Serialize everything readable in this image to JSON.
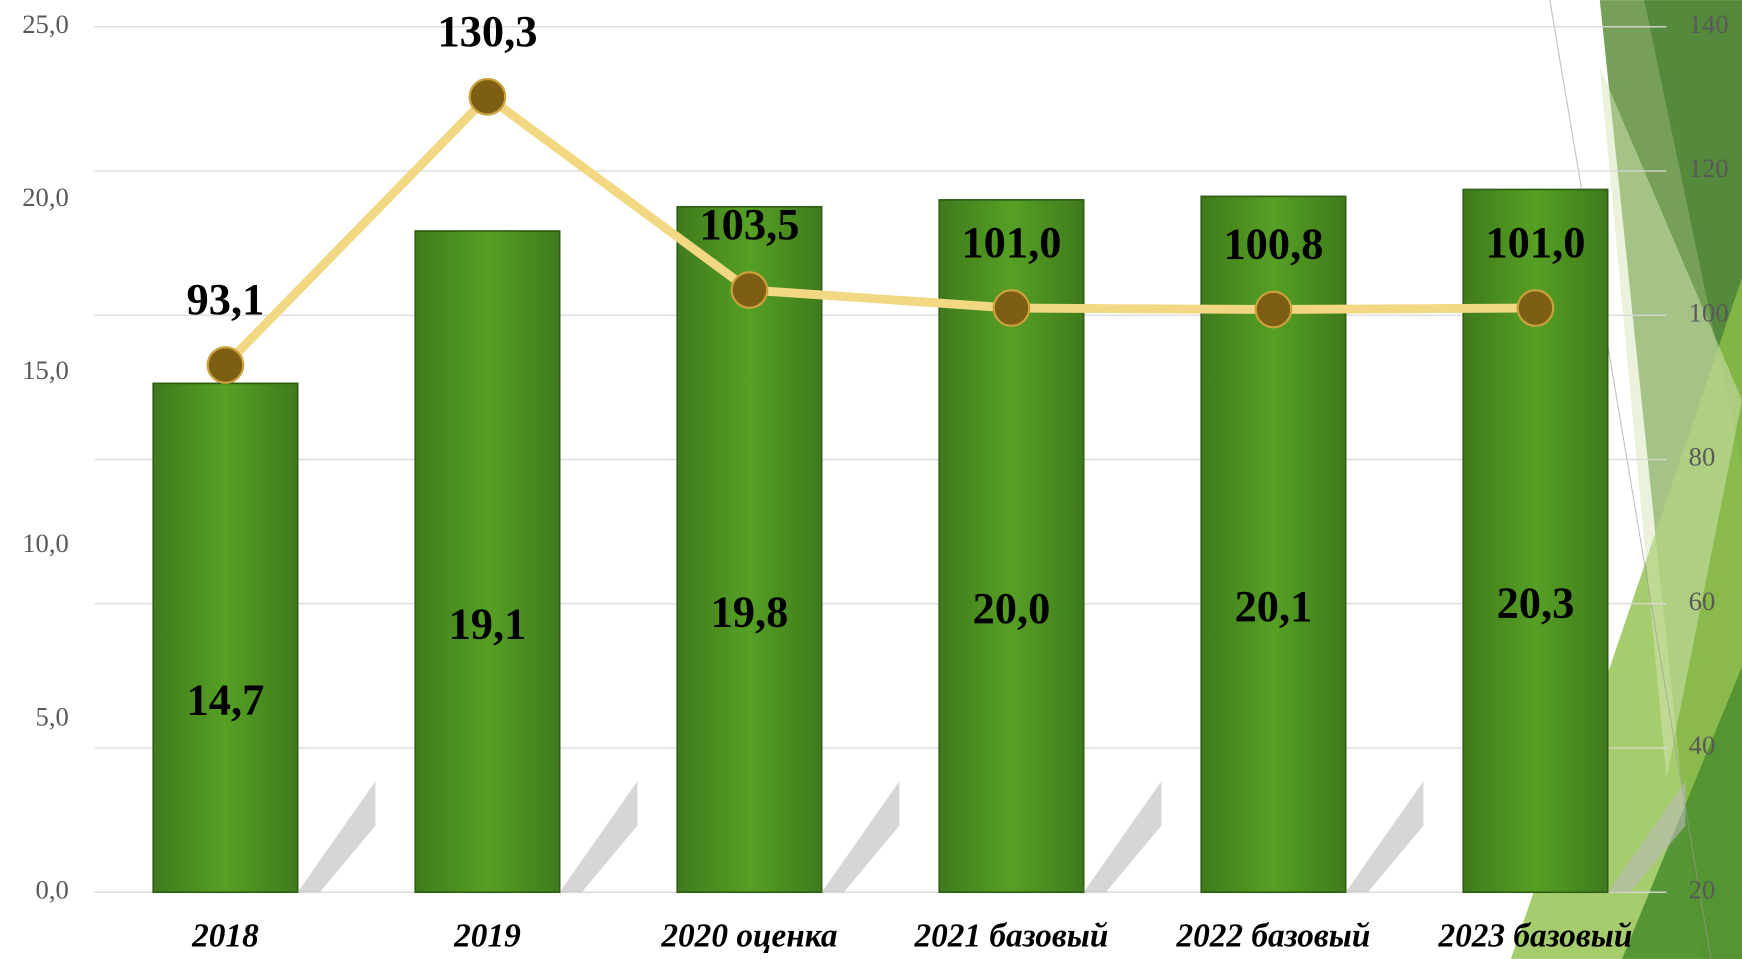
{
  "chart_data": {
    "type": "combo",
    "categories": [
      "2018",
      "2019",
      "2020 оценка",
      "2021 базовый",
      "2022 базовый",
      "2023 базовый"
    ],
    "series": [
      {
        "type": "bar",
        "color": "#4b8b22",
        "values": [
          14.7,
          19.1,
          19.8,
          20.0,
          20.1,
          20.3
        ],
        "value_labels": [
          "14,7",
          "19,1",
          "19,8",
          "20,0",
          "20,1",
          "20,3"
        ]
      },
      {
        "type": "line",
        "axis": "y2",
        "color": "#f2d883",
        "marker_color": "#7d5e12",
        "values": [
          93.1,
          130.3,
          103.5,
          101.0,
          100.8,
          101.0
        ],
        "value_labels": [
          "93,1",
          "130,3",
          "103,5",
          "101,0",
          "100,8",
          "101,0"
        ]
      }
    ],
    "ylim": [
      0,
      25
    ],
    "yticks": [
      {
        "value": 0,
        "label": "0,0"
      },
      {
        "value": 5,
        "label": "5,0"
      },
      {
        "value": 10,
        "label": "10,0"
      },
      {
        "value": 15,
        "label": "15,0"
      },
      {
        "value": 20,
        "label": "20,0"
      },
      {
        "value": 25,
        "label": "25,0"
      }
    ],
    "y2lim": [
      20,
      140
    ],
    "y2ticks": [
      20,
      40,
      60,
      80,
      100,
      120,
      140
    ],
    "grid": true
  }
}
